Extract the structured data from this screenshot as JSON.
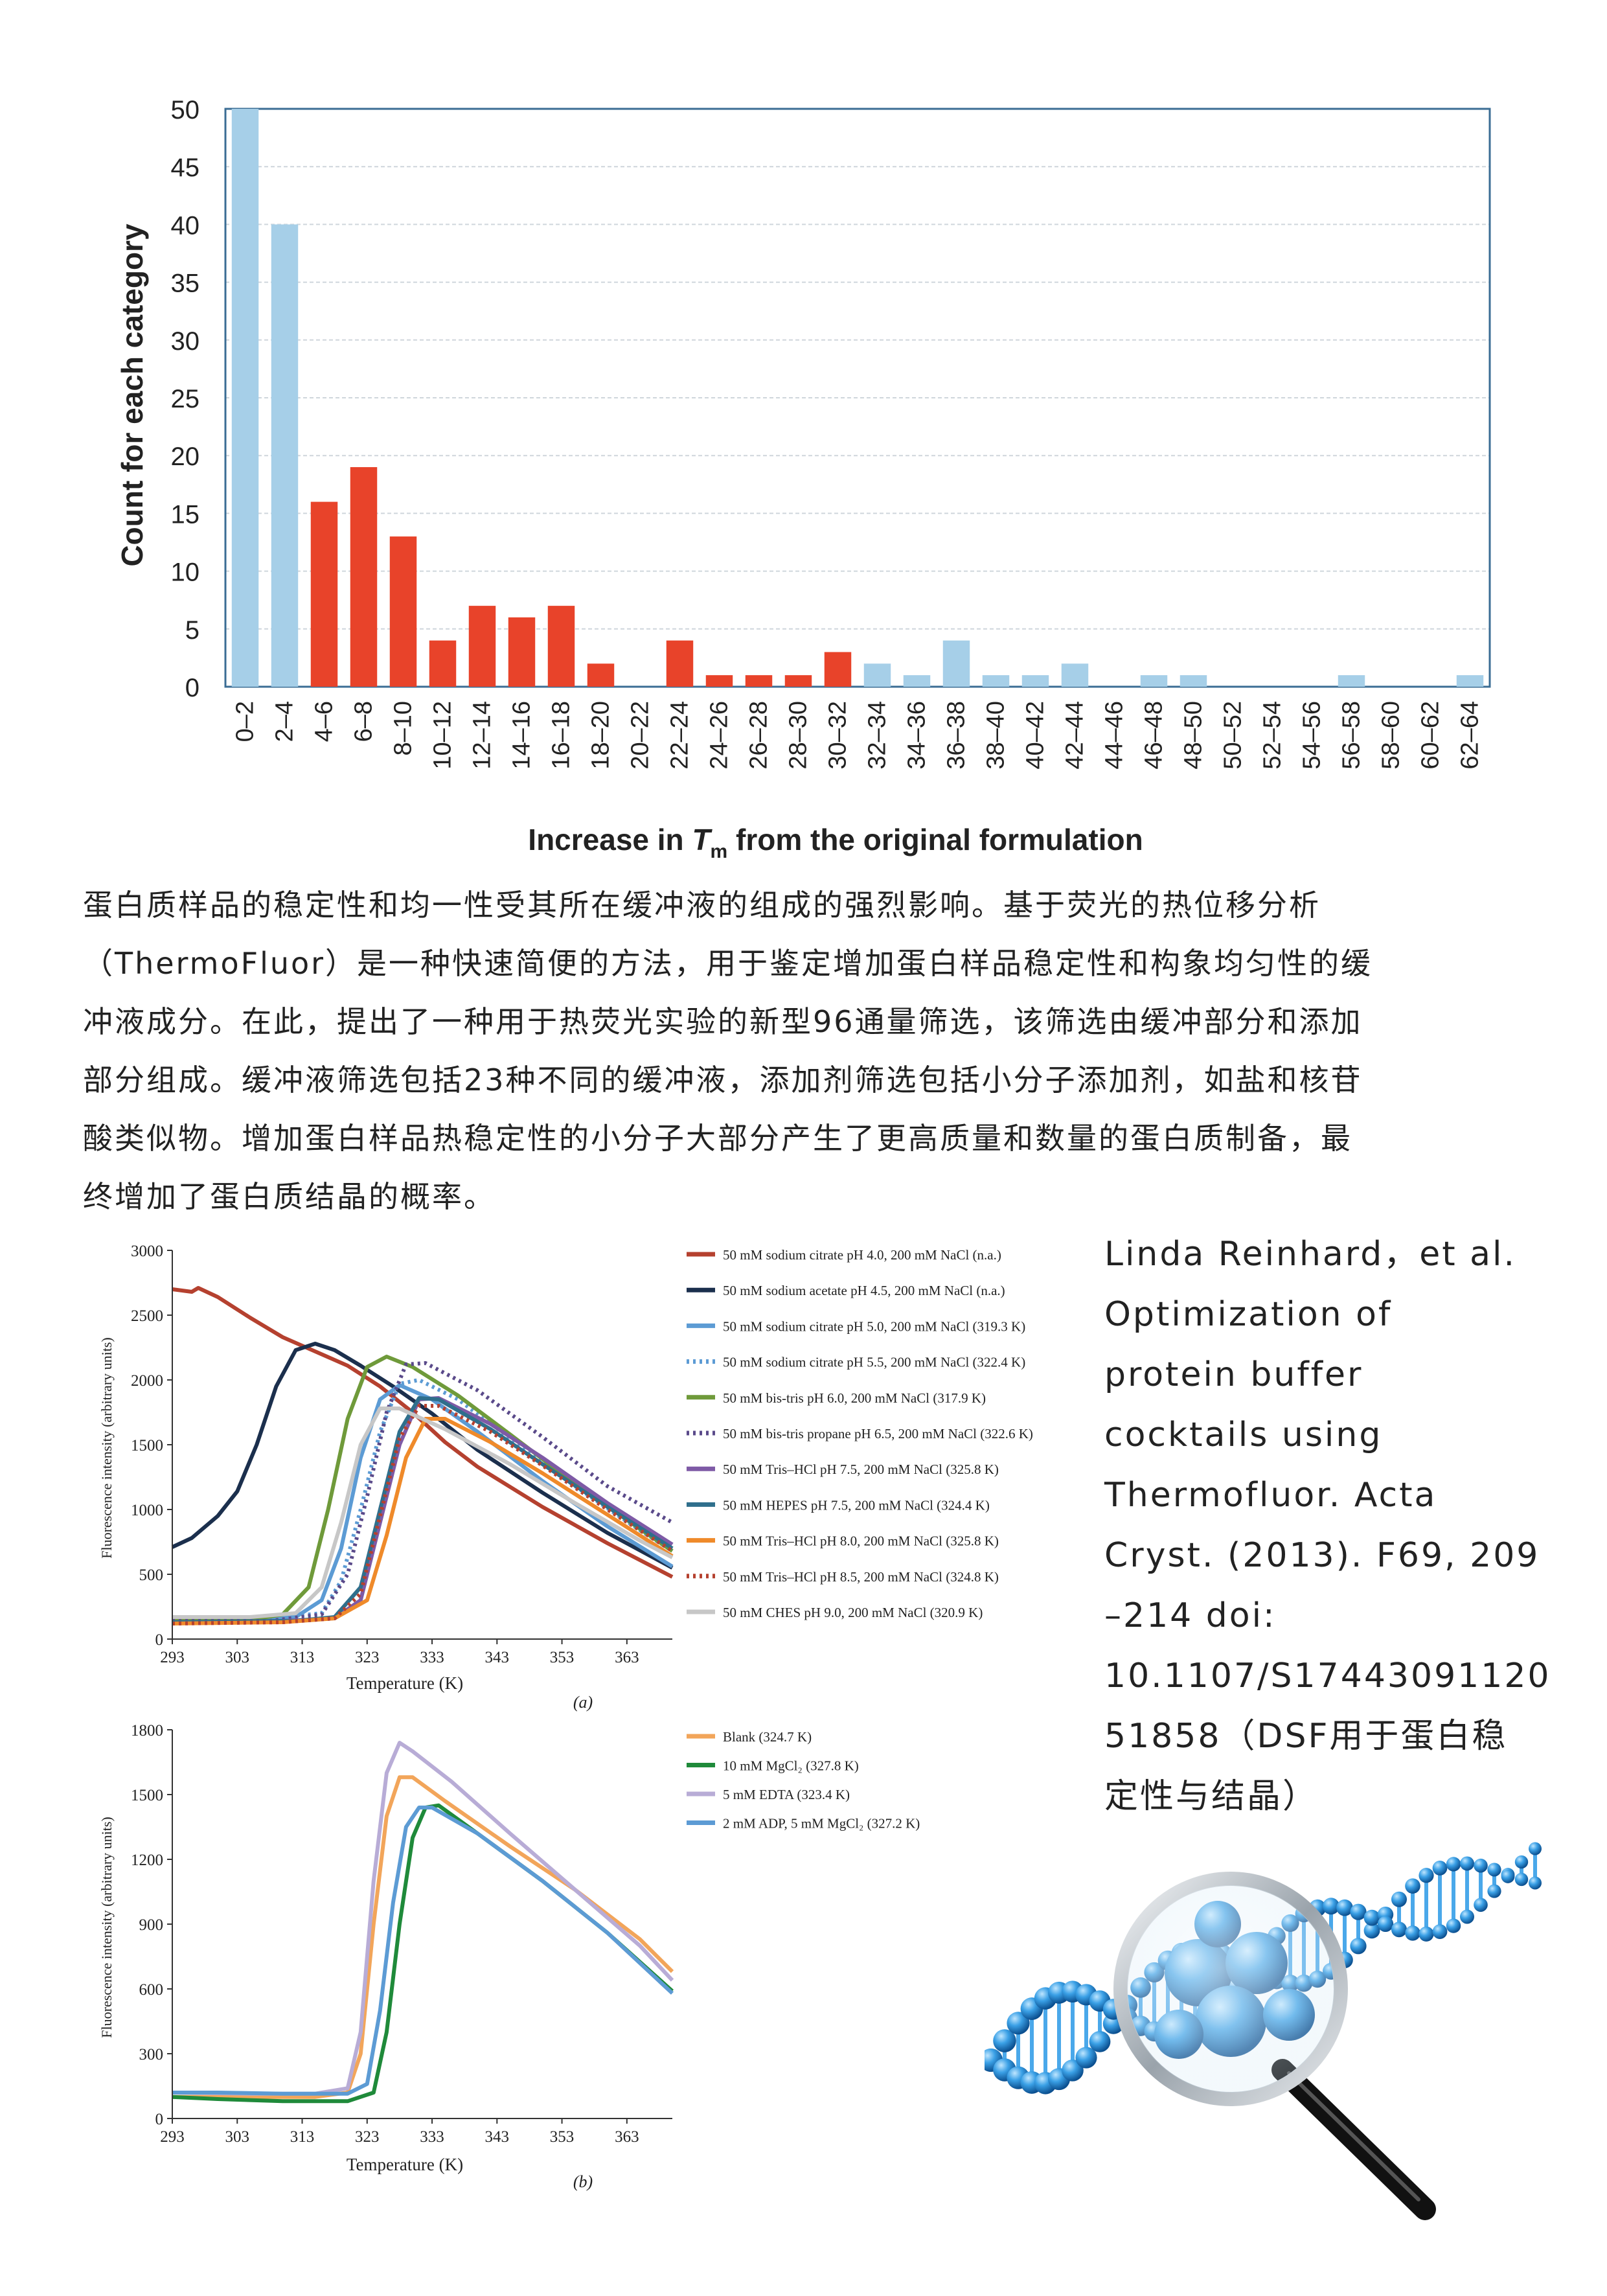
{
  "paragraph": [
    "蛋白质样品的稳定性和均一性受其所在缓冲液的组成的强烈影响。基于荧光的热位移分析",
    "（ThermoFluor）是一种快速简便的方法，用于鉴定增加蛋白样品稳定性和构象均匀性的缓",
    "冲液成分。在此，提出了一种用于热荧光实验的新型96通量筛选，该筛选由缓冲部分和添加",
    "部分组成。缓冲液筛选包括23种不同的缓冲液，添加剂筛选包括小分子添加剂，如盐和核苷",
    "酸类似物。增加蛋白样品热稳定性的小分子大部分产生了更高质量和数量的蛋白质制备，最",
    "终增加了蛋白质结晶的概率。"
  ],
  "citation": [
    "Linda Reinhard，et al.",
    "Optimization of",
    "protein buffer",
    "cocktails using",
    "Thermofluor. Acta",
    "Cryst. (2013). F69, 209",
    "–214 doi:",
    "10.1107/S17443091120",
    "51858（DSF用于蛋白稳",
    "定性与结晶）"
  ],
  "chart_data": [
    {
      "type": "bar",
      "xlabel_prefix": "Increase in ",
      "xlabel_symbol": "T",
      "xlabel_subscript": "m",
      "xlabel_suffix": " from the original formulation",
      "ylabel": "Count for each category",
      "ylim": [
        0,
        50
      ],
      "yticks": [
        "0",
        "5",
        "10",
        "15",
        "20",
        "25",
        "30",
        "35",
        "40",
        "45",
        "50"
      ],
      "grid": true,
      "categories": [
        "0–2",
        "2–4",
        "4–6",
        "6–8",
        "8–10",
        "10–12",
        "12–14",
        "14–16",
        "16–18",
        "18–20",
        "20–22",
        "22–24",
        "24–26",
        "26–28",
        "28–30",
        "30–32",
        "32–34",
        "34–36",
        "36–38",
        "38–40",
        "40–42",
        "42–44",
        "44–46",
        "46–48",
        "48–50",
        "50–52",
        "52–54",
        "54–56",
        "56–58",
        "58–60",
        "60–62",
        "62–64"
      ],
      "values": [
        50,
        40,
        16,
        19,
        13,
        4,
        7,
        6,
        7,
        2,
        0,
        4,
        1,
        1,
        1,
        3,
        2,
        1,
        4,
        1,
        1,
        2,
        0,
        1,
        1,
        0,
        0,
        0,
        1,
        0,
        0,
        1
      ],
      "bar_colors": [
        "#a6cfe8",
        "#a6cfe8",
        "#e8432a",
        "#e8432a",
        "#e8432a",
        "#e8432a",
        "#e8432a",
        "#e8432a",
        "#e8432a",
        "#e8432a",
        "#e8432a",
        "#e8432a",
        "#e8432a",
        "#e8432a",
        "#e8432a",
        "#e8432a",
        "#a6cfe8",
        "#a6cfe8",
        "#a6cfe8",
        "#a6cfe8",
        "#a6cfe8",
        "#a6cfe8",
        "#a6cfe8",
        "#a6cfe8",
        "#a6cfe8",
        "#a6cfe8",
        "#a6cfe8",
        "#a6cfe8",
        "#a6cfe8",
        "#a6cfe8",
        "#a6cfe8",
        "#a6cfe8"
      ]
    },
    {
      "type": "line",
      "panel_label": "(a)",
      "xlabel": "Temperature (K)",
      "ylabel": "Fluorescence intensity (arbitrary units)",
      "xlim": [
        293,
        370
      ],
      "ylim": [
        0,
        3000
      ],
      "xticks": [
        "293",
        "303",
        "313",
        "323",
        "333",
        "343",
        "353",
        "363"
      ],
      "yticks": [
        "0",
        "500",
        "1000",
        "1500",
        "2000",
        "2500",
        "3000"
      ],
      "series": [
        {
          "name": "50 mM sodium citrate pH 4.0, 200 mM NaCl (n.a.)",
          "color": "#b5412f",
          "dash": false,
          "points": [
            [
              293,
              2700
            ],
            [
              296,
              2680
            ],
            [
              297,
              2710
            ],
            [
              300,
              2640
            ],
            [
              305,
              2480
            ],
            [
              310,
              2330
            ],
            [
              315,
              2220
            ],
            [
              320,
              2110
            ],
            [
              325,
              1950
            ],
            [
              330,
              1750
            ],
            [
              335,
              1520
            ],
            [
              340,
              1330
            ],
            [
              350,
              1020
            ],
            [
              360,
              740
            ],
            [
              370,
              480
            ]
          ]
        },
        {
          "name": "50 mM sodium acetate pH 4.5, 200 mM NaCl (n.a.)",
          "color": "#1b2f4d",
          "dash": false,
          "points": [
            [
              293,
              710
            ],
            [
              296,
              780
            ],
            [
              300,
              950
            ],
            [
              303,
              1140
            ],
            [
              306,
              1500
            ],
            [
              309,
              1950
            ],
            [
              312,
              2230
            ],
            [
              315,
              2280
            ],
            [
              318,
              2230
            ],
            [
              322,
              2110
            ],
            [
              327,
              1950
            ],
            [
              333,
              1740
            ],
            [
              340,
              1460
            ],
            [
              350,
              1130
            ],
            [
              360,
              820
            ],
            [
              370,
              550
            ]
          ]
        },
        {
          "name": "50 mM sodium citrate pH 5.0, 200 mM NaCl (319.3 K)",
          "color": "#5c9bd4",
          "dash": false,
          "points": [
            [
              293,
              160
            ],
            [
              305,
              160
            ],
            [
              312,
              170
            ],
            [
              316,
              300
            ],
            [
              319,
              700
            ],
            [
              322,
              1400
            ],
            [
              325,
              1850
            ],
            [
              328,
              1960
            ],
            [
              333,
              1850
            ],
            [
              340,
              1600
            ],
            [
              350,
              1220
            ],
            [
              360,
              870
            ],
            [
              370,
              560
            ]
          ]
        },
        {
          "name": "50 mM sodium citrate pH 5.5, 200 mM NaCl (322.4 K)",
          "color": "#5c9bd4",
          "dash": true,
          "points": [
            [
              293,
              160
            ],
            [
              308,
              160
            ],
            [
              316,
              200
            ],
            [
              319,
              450
            ],
            [
              322,
              1000
            ],
            [
              325,
              1600
            ],
            [
              328,
              1970
            ],
            [
              331,
              2000
            ],
            [
              337,
              1850
            ],
            [
              345,
              1550
            ],
            [
              355,
              1180
            ],
            [
              365,
              840
            ],
            [
              370,
              680
            ]
          ]
        },
        {
          "name": "50 mM bis-tris pH 6.0, 200 mM NaCl (317.9 K)",
          "color": "#6f9a3a",
          "dash": false,
          "points": [
            [
              293,
              150
            ],
            [
              305,
              150
            ],
            [
              310,
              190
            ],
            [
              314,
              400
            ],
            [
              317,
              1000
            ],
            [
              320,
              1700
            ],
            [
              323,
              2100
            ],
            [
              326,
              2180
            ],
            [
              330,
              2100
            ],
            [
              337,
              1880
            ],
            [
              345,
              1580
            ],
            [
              355,
              1200
            ],
            [
              365,
              850
            ],
            [
              370,
              680
            ]
          ]
        },
        {
          "name": "50 mM bis-tris propane pH 6.5, 200 mM NaCl (322.6 K)",
          "color": "#5a4a8a",
          "dash": true,
          "points": [
            [
              293,
              140
            ],
            [
              308,
              140
            ],
            [
              316,
              190
            ],
            [
              320,
              500
            ],
            [
              323,
              1100
            ],
            [
              326,
              1750
            ],
            [
              329,
              2120
            ],
            [
              332,
              2130
            ],
            [
              340,
              1920
            ],
            [
              350,
              1560
            ],
            [
              360,
              1180
            ],
            [
              370,
              900
            ]
          ]
        },
        {
          "name": "50 mM Tris–HCl pH 7.5, 200 mM NaCl (325.8 K)",
          "color": "#7e5aa6",
          "dash": false,
          "points": [
            [
              293,
              130
            ],
            [
              310,
              140
            ],
            [
              318,
              160
            ],
            [
              322,
              300
            ],
            [
              325,
              900
            ],
            [
              328,
              1500
            ],
            [
              331,
              1850
            ],
            [
              334,
              1860
            ],
            [
              342,
              1660
            ],
            [
              350,
              1400
            ],
            [
              360,
              1050
            ],
            [
              370,
              730
            ]
          ]
        },
        {
          "name": "50 mM HEPES pH 7.5, 200 mM NaCl (324.4 K)",
          "color": "#2f6f8c",
          "dash": false,
          "points": [
            [
              293,
              130
            ],
            [
              312,
              140
            ],
            [
              318,
              170
            ],
            [
              322,
              400
            ],
            [
              325,
              1000
            ],
            [
              328,
              1600
            ],
            [
              331,
              1860
            ],
            [
              334,
              1850
            ],
            [
              342,
              1620
            ],
            [
              350,
              1350
            ],
            [
              360,
              1020
            ],
            [
              370,
              700
            ]
          ]
        },
        {
          "name": "50 mM Tris–HCl pH 8.0, 200 mM NaCl (325.8 K)",
          "color": "#ef8a2a",
          "dash": false,
          "points": [
            [
              293,
              120
            ],
            [
              310,
              130
            ],
            [
              318,
              160
            ],
            [
              323,
              300
            ],
            [
              326,
              800
            ],
            [
              329,
              1400
            ],
            [
              332,
              1700
            ],
            [
              335,
              1700
            ],
            [
              342,
              1520
            ],
            [
              350,
              1280
            ],
            [
              360,
              960
            ],
            [
              370,
              640
            ]
          ]
        },
        {
          "name": "50 mM Tris–HCl pH 8.5, 200 mM NaCl (324.8 K)",
          "color": "#b5412f",
          "dash": true,
          "points": [
            [
              293,
              120
            ],
            [
              310,
              130
            ],
            [
              318,
              160
            ],
            [
              322,
              350
            ],
            [
              325,
              950
            ],
            [
              328,
              1550
            ],
            [
              331,
              1800
            ],
            [
              334,
              1800
            ],
            [
              342,
              1600
            ],
            [
              350,
              1340
            ],
            [
              360,
              1000
            ],
            [
              370,
              680
            ]
          ]
        },
        {
          "name": "50 mM CHES pH 9.0, 200 mM NaCl (320.9 K)",
          "color": "#c7c7c7",
          "dash": false,
          "points": [
            [
              293,
              170
            ],
            [
              305,
              170
            ],
            [
              312,
              200
            ],
            [
              316,
              400
            ],
            [
              319,
              900
            ],
            [
              322,
              1500
            ],
            [
              325,
              1780
            ],
            [
              328,
              1780
            ],
            [
              335,
              1620
            ],
            [
              345,
              1350
            ],
            [
              355,
              1050
            ],
            [
              365,
              760
            ],
            [
              370,
              630
            ]
          ]
        }
      ]
    },
    {
      "type": "line",
      "panel_label": "(b)",
      "xlabel": "Temperature (K)",
      "ylabel": "Fluorescence intensity (arbitrary units)",
      "xlim": [
        293,
        370
      ],
      "ylim": [
        0,
        1800
      ],
      "xticks": [
        "293",
        "303",
        "313",
        "323",
        "333",
        "343",
        "353",
        "363"
      ],
      "yticks": [
        "0",
        "300",
        "600",
        "900",
        "1200",
        "1500",
        "1800"
      ],
      "series": [
        {
          "name": "Blank (324.7 K)",
          "color": "#f2a55a",
          "dash": false,
          "points": [
            [
              293,
              100
            ],
            [
              305,
              100
            ],
            [
              315,
              100
            ],
            [
              320,
              120
            ],
            [
              322,
              300
            ],
            [
              324,
              900
            ],
            [
              326,
              1400
            ],
            [
              328,
              1580
            ],
            [
              330,
              1580
            ],
            [
              335,
              1470
            ],
            [
              345,
              1260
            ],
            [
              355,
              1060
            ],
            [
              365,
              830
            ],
            [
              370,
              680
            ]
          ]
        },
        {
          "name": "10 mM MgCl₂ (327.8 K)",
          "color": "#1f8a3a",
          "dash": false,
          "points": [
            [
              293,
              100
            ],
            [
              300,
              90
            ],
            [
              310,
              80
            ],
            [
              320,
              80
            ],
            [
              324,
              120
            ],
            [
              326,
              400
            ],
            [
              328,
              900
            ],
            [
              330,
              1300
            ],
            [
              332,
              1440
            ],
            [
              334,
              1450
            ],
            [
              340,
              1320
            ],
            [
              350,
              1100
            ],
            [
              360,
              860
            ],
            [
              370,
              590
            ]
          ]
        },
        {
          "name": "5 mM EDTA (323.4 K)",
          "color": "#b8acd6",
          "dash": false,
          "points": [
            [
              293,
              120
            ],
            [
              305,
              115
            ],
            [
              315,
              115
            ],
            [
              320,
              140
            ],
            [
              322,
              400
            ],
            [
              324,
              1100
            ],
            [
              326,
              1600
            ],
            [
              328,
              1740
            ],
            [
              330,
              1700
            ],
            [
              336,
              1560
            ],
            [
              345,
              1320
            ],
            [
              355,
              1060
            ],
            [
              365,
              800
            ],
            [
              370,
              640
            ]
          ]
        },
        {
          "name": "2 mM ADP, 5 mM MgCl₂ (327.2 K)",
          "color": "#5c9bd4",
          "dash": false,
          "points": [
            [
              293,
              120
            ],
            [
              300,
              120
            ],
            [
              310,
              115
            ],
            [
              320,
              115
            ],
            [
              323,
              160
            ],
            [
              325,
              500
            ],
            [
              327,
              1000
            ],
            [
              329,
              1350
            ],
            [
              331,
              1440
            ],
            [
              333,
              1440
            ],
            [
              340,
              1320
            ],
            [
              350,
              1100
            ],
            [
              360,
              860
            ],
            [
              370,
              580
            ]
          ]
        }
      ]
    }
  ]
}
